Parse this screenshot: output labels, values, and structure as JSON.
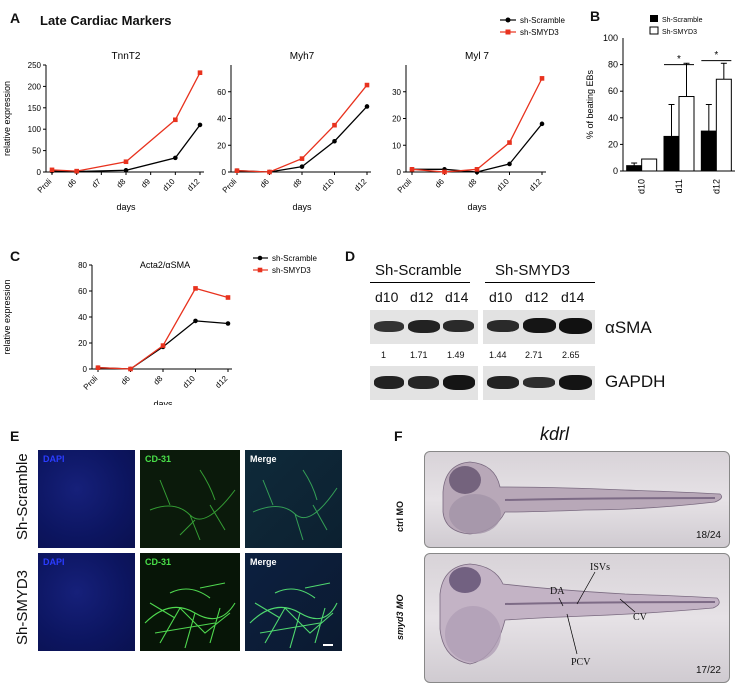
{
  "figure": {
    "title": "Late Cardiac Markers",
    "panels": [
      "A",
      "B",
      "C",
      "D",
      "E",
      "F"
    ]
  },
  "panel_a": {
    "legend": [
      "sh-Scramble",
      "sh-SMYD3"
    ],
    "days_label": "days",
    "ylabel": "relative expression",
    "plots": [
      {
        "title": "TnnT2"
      },
      {
        "title": "Myh7"
      },
      {
        "title": "Myl 7"
      }
    ]
  },
  "panel_b": {
    "legend": [
      "Sh-Scramble",
      "Sh-SMYD3"
    ],
    "ylabel": "% of beating EBs",
    "sig": [
      "*",
      "*"
    ]
  },
  "panel_c": {
    "title": "Acta2/αSMA",
    "legend": [
      "sh-Scramble",
      "sh-SMYD3"
    ],
    "ylabel": "relative expression",
    "xlabel": "days"
  },
  "panel_d": {
    "group1": "Sh-Scramble",
    "group2": "Sh-SMYD3",
    "lanes": [
      "d10",
      "d12",
      "d14",
      "d10",
      "d12",
      "d14"
    ],
    "row1": "αSMA",
    "row2": "GAPDH",
    "quant": [
      "1",
      "1.71",
      "1.49",
      "1.44",
      "2.71",
      "2.65"
    ]
  },
  "panel_e": {
    "rows": [
      "Sh-Scramble",
      "Sh-SMYD3"
    ],
    "cols": [
      "DAPI",
      "CD-31",
      "Merge"
    ]
  },
  "panel_f": {
    "title": "kdrl",
    "rows": [
      {
        "label": "ctrl MO",
        "count": "18/24"
      },
      {
        "label": "smyd3 MO",
        "count": "17/22"
      }
    ],
    "annotations": [
      "ISVs",
      "DA",
      "CV",
      "PCV"
    ]
  },
  "colors": {
    "scramble": "#000000",
    "smyd3": "#e8321e"
  },
  "chart_data": [
    {
      "type": "line",
      "title": "TnnT2",
      "xlabel": "days",
      "ylabel": "relative expression",
      "categories": [
        "Proli",
        "d6",
        "d7",
        "d8",
        "d9",
        "d10",
        "d12"
      ],
      "ylim": [
        0,
        250
      ],
      "yticks": [
        0,
        50,
        100,
        150,
        200,
        250
      ],
      "series": [
        {
          "name": "sh-Scramble",
          "x": [
            "Proli",
            "d6",
            "d8",
            "d10",
            "d12"
          ],
          "values": [
            2,
            1,
            4,
            33,
            110
          ]
        },
        {
          "name": "sh-SMYD3",
          "x": [
            "Proli",
            "d6",
            "d8",
            "d10",
            "d12"
          ],
          "values": [
            5,
            2,
            24,
            122,
            232
          ]
        }
      ]
    },
    {
      "type": "line",
      "title": "Myh7",
      "xlabel": "days",
      "categories": [
        "Proli",
        "d6",
        "d8",
        "d10",
        "d12"
      ],
      "ylim": [
        0,
        80
      ],
      "yticks": [
        0,
        20,
        40,
        60
      ],
      "series": [
        {
          "name": "sh-Scramble",
          "values": [
            1,
            0,
            4,
            23,
            49
          ]
        },
        {
          "name": "sh-SMYD3",
          "values": [
            1,
            0,
            10,
            35,
            65
          ]
        }
      ]
    },
    {
      "type": "line",
      "title": "Myl 7",
      "xlabel": "days",
      "categories": [
        "Proli",
        "d6",
        "d8",
        "d10",
        "d12"
      ],
      "ylim": [
        0,
        40
      ],
      "yticks": [
        0,
        10,
        20,
        30
      ],
      "series": [
        {
          "name": "sh-Scramble",
          "values": [
            1,
            1,
            0,
            3,
            18
          ]
        },
        {
          "name": "sh-SMYD3",
          "values": [
            1,
            0,
            1,
            11,
            35
          ]
        }
      ]
    },
    {
      "type": "bar",
      "ylabel": "% of beating EBs",
      "categories": [
        "d10",
        "d11",
        "d12"
      ],
      "ylim": [
        0,
        100
      ],
      "yticks": [
        0,
        20,
        40,
        60,
        80
      ],
      "series": [
        {
          "name": "Sh-Scramble",
          "values": [
            4,
            26,
            30
          ],
          "errors": [
            2,
            24,
            20
          ]
        },
        {
          "name": "Sh-SMYD3",
          "values": [
            9,
            56,
            69
          ],
          "errors": [
            0,
            25,
            12
          ]
        }
      ]
    },
    {
      "type": "line",
      "title": "Acta2/αSMA",
      "xlabel": "days",
      "ylabel": "relative expression",
      "categories": [
        "Proli",
        "d6",
        "d8",
        "d10",
        "d12"
      ],
      "ylim": [
        0,
        80
      ],
      "yticks": [
        0,
        20,
        40,
        60,
        80
      ],
      "series": [
        {
          "name": "sh-Scramble",
          "values": [
            1,
            0,
            17,
            37,
            35
          ]
        },
        {
          "name": "sh-SMYD3",
          "values": [
            1,
            0,
            18,
            62,
            55
          ]
        }
      ]
    }
  ]
}
